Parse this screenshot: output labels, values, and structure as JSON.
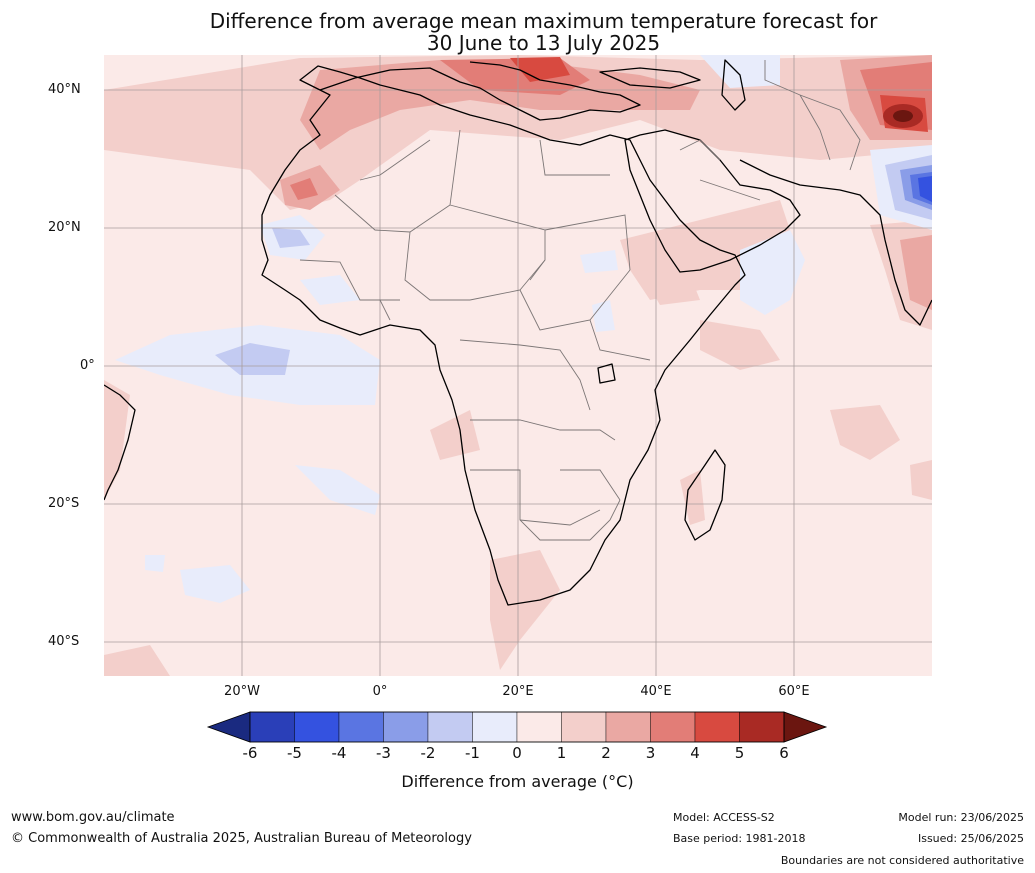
{
  "title": {
    "line1": "Difference from average mean maximum temperature forecast for",
    "line2": "30 June to 13 July 2025"
  },
  "axes": {
    "lat_labels": [
      "40°N",
      "20°N",
      "0°",
      "20°S",
      "40°S"
    ],
    "lon_labels": [
      "20°W",
      "0°",
      "20°E",
      "40°E",
      "60°E"
    ],
    "lat_values": [
      40,
      20,
      0,
      -20,
      -40
    ],
    "lon_values": [
      -20,
      0,
      20,
      40,
      60
    ],
    "extent": {
      "lon_min": -40,
      "lon_max": 80,
      "lat_min": -45,
      "lat_max": 45
    }
  },
  "colorbar": {
    "label": "Difference from average (°C)",
    "ticks": [
      "-6",
      "-5",
      "-4",
      "-3",
      "-2",
      "-1",
      "0",
      "1",
      "2",
      "3",
      "4",
      "5",
      "6"
    ],
    "colors": [
      "#1a2a80",
      "#2a3fb8",
      "#3452e0",
      "#5a75e2",
      "#8a9de8",
      "#c3cbf2",
      "#e8ecfb",
      "#fbeae8",
      "#f3cfcb",
      "#eaa8a3",
      "#e27d77",
      "#d84a40",
      "#a92a24",
      "#6b1610"
    ]
  },
  "footer": {
    "website": "www.bom.gov.au/climate",
    "copyright": "© Commonwealth of Australia 2025, Australian Bureau of Meteorology",
    "model": "Model: ACCESS-S2",
    "base_period": "Base period: 1981-2018",
    "model_run": "Model run: 23/06/2025",
    "issued": "Issued: 25/06/2025",
    "disclaimer": "Boundaries are not considered authoritative"
  }
}
